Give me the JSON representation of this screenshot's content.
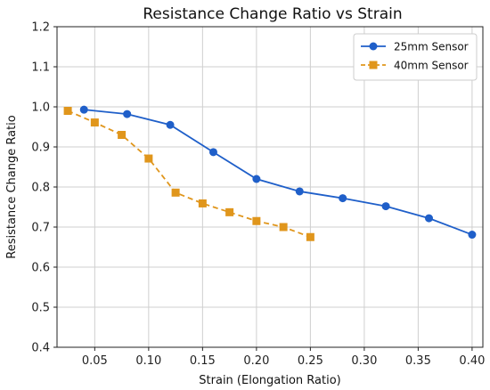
{
  "chart_data": {
    "type": "line",
    "title": "Resistance Change Ratio vs Strain",
    "xlabel": "Strain (Elongation Ratio)",
    "ylabel": "Resistance Change Ratio",
    "xlim": [
      0.015,
      0.41
    ],
    "ylim": [
      0.4,
      1.2
    ],
    "xticks": [
      0.05,
      0.1,
      0.15,
      0.2,
      0.25,
      0.3,
      0.35,
      0.4
    ],
    "xtick_labels": [
      "0.05",
      "0.10",
      "0.15",
      "0.20",
      "0.25",
      "0.30",
      "0.35",
      "0.40"
    ],
    "yticks": [
      0.4,
      0.5,
      0.6,
      0.7,
      0.8,
      0.9,
      1.0,
      1.1,
      1.2
    ],
    "ytick_labels": [
      "0.4",
      "0.5",
      "0.6",
      "0.7",
      "0.8",
      "0.9",
      "1.0",
      "1.1",
      "1.2"
    ],
    "grid": true,
    "legend_position": "top-right",
    "series": [
      {
        "name": "25mm Sensor",
        "color": "#1f5fc9",
        "marker": "circle",
        "line_style": "solid",
        "x": [
          0.04,
          0.08,
          0.12,
          0.16,
          0.2,
          0.24,
          0.28,
          0.32,
          0.36,
          0.4
        ],
        "y": [
          0.993,
          0.982,
          0.955,
          0.887,
          0.82,
          0.789,
          0.772,
          0.752,
          0.722,
          0.681
        ]
      },
      {
        "name": "40mm Sensor",
        "color": "#e0961c",
        "marker": "square",
        "line_style": "dashed",
        "x": [
          0.025,
          0.05,
          0.075,
          0.1,
          0.125,
          0.15,
          0.175,
          0.2,
          0.225,
          0.25
        ],
        "y": [
          0.99,
          0.961,
          0.93,
          0.871,
          0.786,
          0.759,
          0.737,
          0.715,
          0.7,
          0.675
        ]
      }
    ]
  }
}
